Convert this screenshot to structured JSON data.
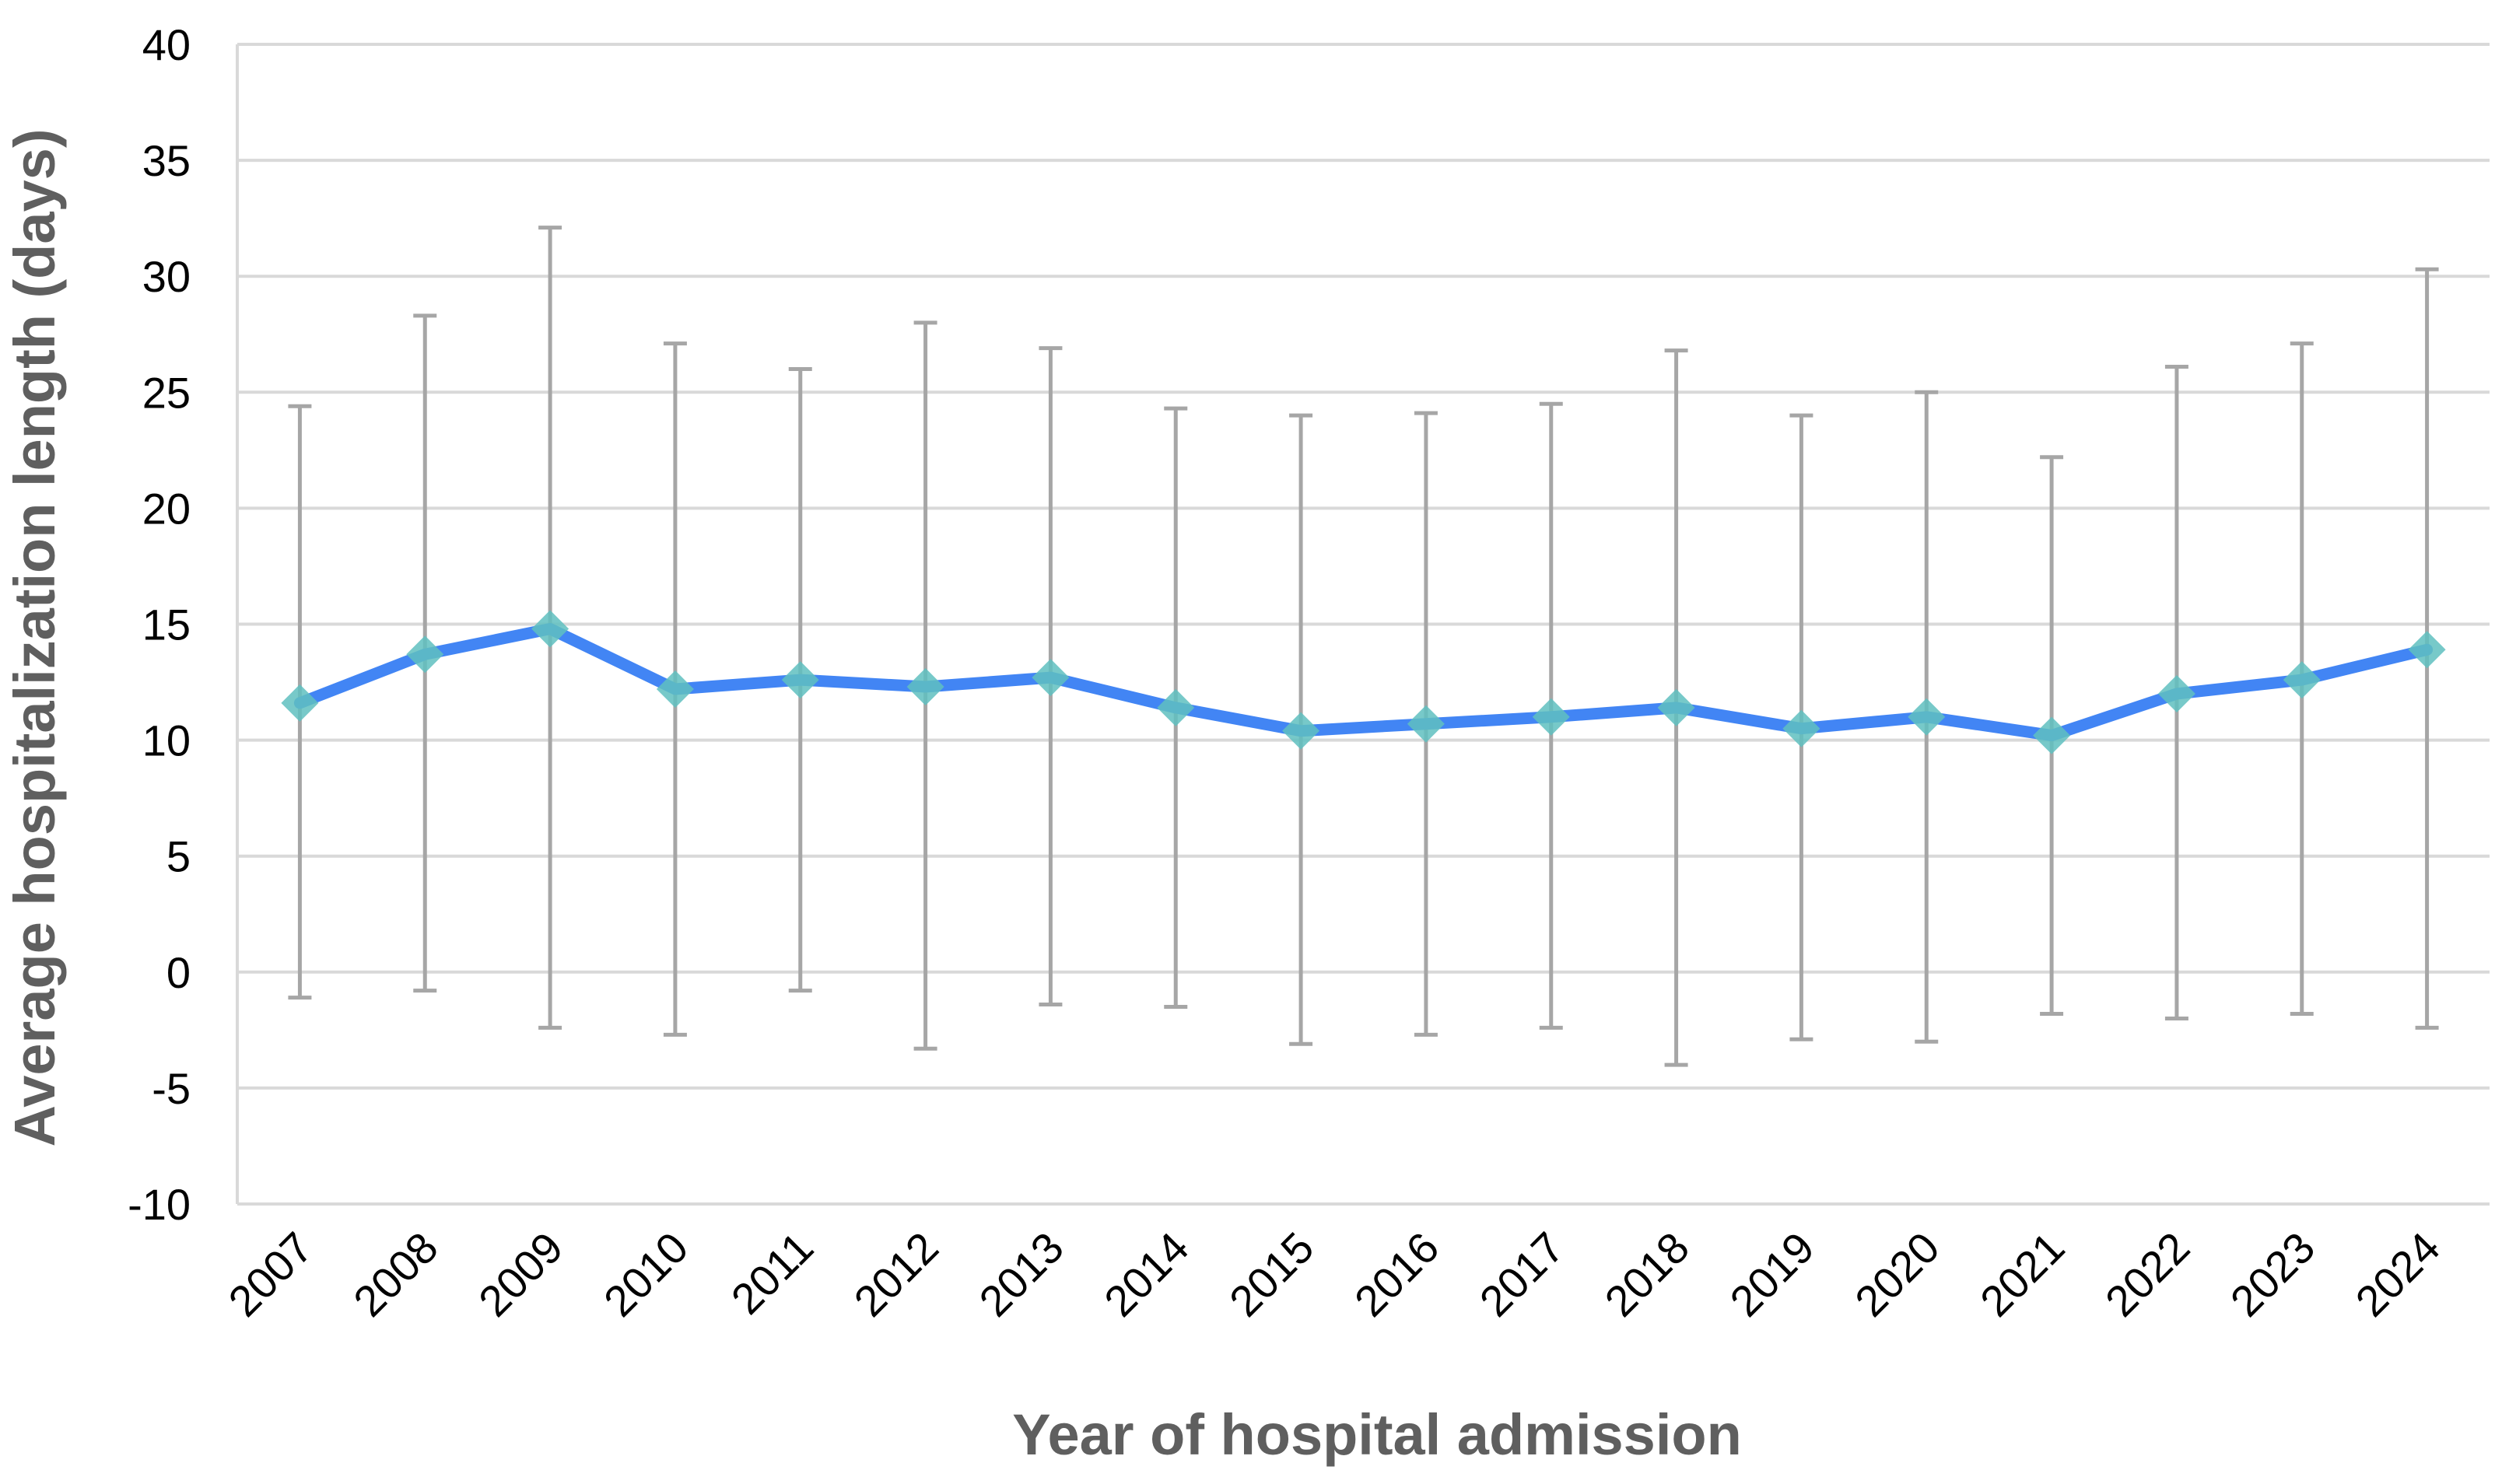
{
  "chart_data": {
    "type": "line",
    "title": "",
    "xlabel": "Year of hospital admission",
    "ylabel": "Average hospitalization length (days)",
    "ylim": [
      -10,
      40
    ],
    "yticks": [
      -10,
      -5,
      0,
      5,
      10,
      15,
      20,
      25,
      30,
      35,
      40
    ],
    "categories": [
      "2007",
      "2008",
      "2009",
      "2010",
      "2011",
      "2012",
      "2013",
      "2014",
      "2015",
      "2016",
      "2017",
      "2018",
      "2019",
      "2020",
      "2021",
      "2022",
      "2023",
      "2024"
    ],
    "series": [
      {
        "values": [
          11.6,
          13.7,
          14.8,
          12.2,
          12.6,
          12.3,
          12.7,
          11.4,
          10.4,
          10.7,
          11.0,
          11.4,
          10.5,
          11.0,
          10.2,
          12.0,
          12.6,
          13.9
        ],
        "error_low": [
          -1.1,
          -0.8,
          -2.4,
          -2.7,
          -0.8,
          -3.3,
          -1.4,
          -1.5,
          -3.1,
          -2.7,
          -2.4,
          -4.0,
          -2.9,
          -3.0,
          -1.8,
          -2.0,
          -1.8,
          -2.4
        ],
        "error_high": [
          24.4,
          28.3,
          32.1,
          27.1,
          26.0,
          28.0,
          26.9,
          24.3,
          24.0,
          24.1,
          24.5,
          26.8,
          24.0,
          25.0,
          22.2,
          26.1,
          27.1,
          30.3
        ],
        "line_color": "#4285f4",
        "marker_color": "#5fbfbf"
      }
    ],
    "error_bar_color": "#a6a6a6",
    "grid": true,
    "grid_color": "#d9d9d9",
    "legend": "none"
  }
}
